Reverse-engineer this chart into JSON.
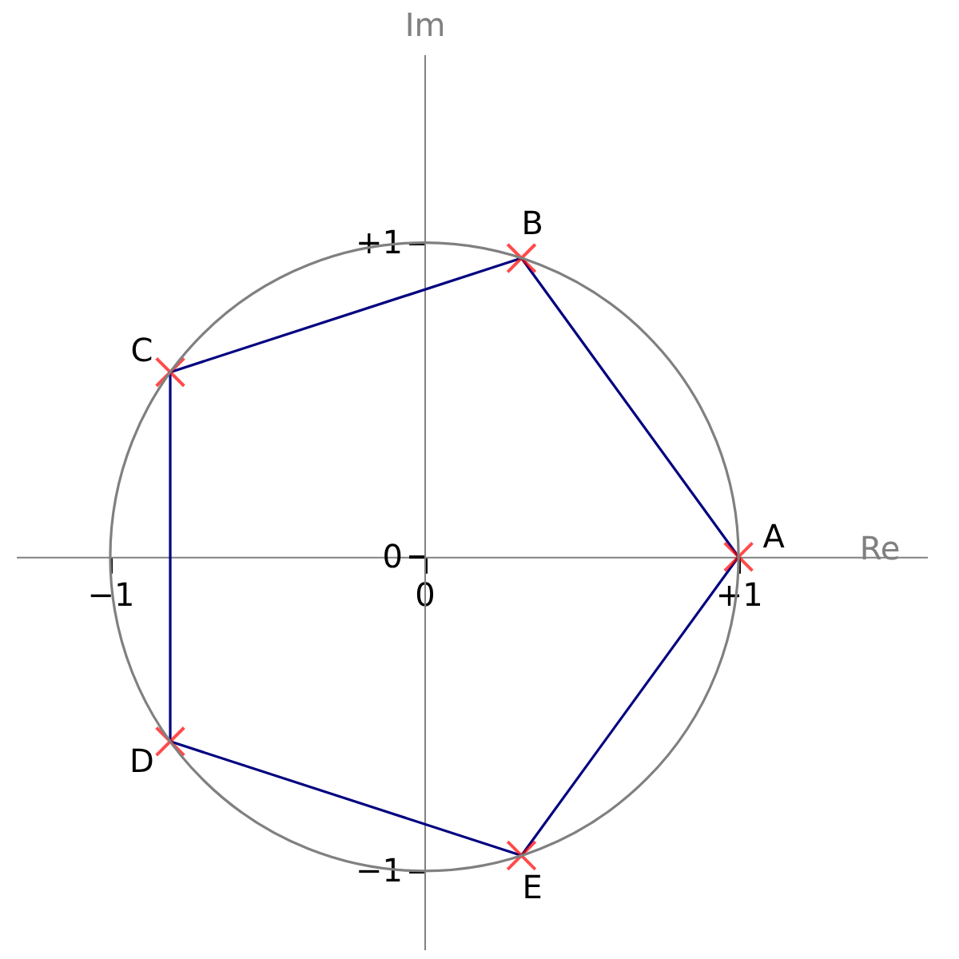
{
  "chart_data": {
    "type": "line",
    "xlabel": "Re",
    "ylabel": "Im",
    "xlim": [
      -1.3,
      1.6
    ],
    "ylim": [
      -1.25,
      1.6
    ],
    "xticks": [
      {
        "value": -1,
        "label": "−1"
      },
      0,
      {
        "value": 1,
        "label": "+1"
      }
    ],
    "yticks": [
      {
        "value": -1,
        "label": "−1"
      },
      0,
      {
        "value": 1,
        "label": "+1"
      }
    ],
    "grid": false,
    "series": [
      {
        "type": "line",
        "color": "#000080",
        "marker": "none",
        "x": [
          -0.809,
          -0.809,
          0.309,
          1
        ],
        "values": [
          -0.588,
          0.588,
          0.951,
          0
        ]
      },
      {
        "type": "line",
        "color": "#000080",
        "marker": "none",
        "x": [
          -0.809,
          0.309,
          1
        ],
        "values": [
          -0.588,
          -0.951,
          0
        ]
      },
      {
        "type": "scatter",
        "color": "#ff0000",
        "marker": "cross",
        "x": [
          1,
          0.309,
          -0.809,
          -0.809,
          0.309
        ],
        "values": [
          0,
          0.951,
          0.588,
          -0.588,
          -0.951
        ]
      }
    ],
    "annotations": [
      {
        "text": "A",
        "x": 1,
        "y": 0
      },
      {
        "text": "B",
        "x": 0.309,
        "y": 0.951
      },
      {
        "text": "C",
        "x": -0.809,
        "y": 0.588
      },
      {
        "text": "D",
        "x": -0.809,
        "y": -0.588
      },
      {
        "text": "E",
        "x": 0.309,
        "y": -0.951
      }
    ]
  }
}
